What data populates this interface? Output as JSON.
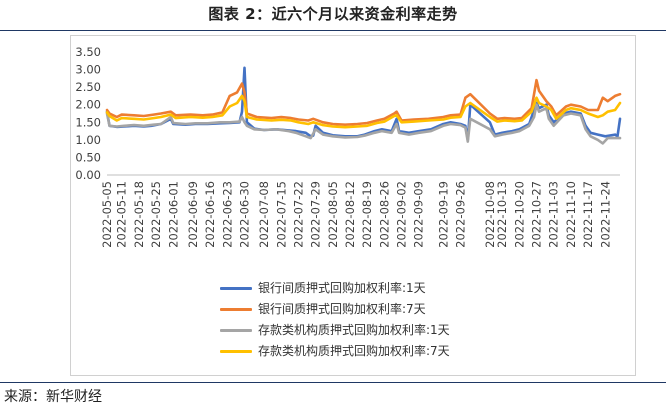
{
  "header": {
    "title": "图表 2：近六个月以来资金利率走势"
  },
  "footer": {
    "source": "来源：新华财经"
  },
  "chart_data": {
    "type": "line",
    "title": "",
    "xlabel": "",
    "ylabel": "",
    "ylim": [
      0,
      3.5
    ],
    "yticks": [
      "0.00",
      "0.50",
      "1.00",
      "1.50",
      "2.00",
      "2.50",
      "3.00",
      "3.50"
    ],
    "grid": false,
    "legend": "bottom",
    "x_start": "2022-05-05",
    "x_end": "2022-11-30",
    "xticks": [
      "2022-05-05",
      "2022-05-11",
      "2022-05-18",
      "2022-05-25",
      "2022-06-01",
      "2022-06-09",
      "2022-06-16",
      "2022-06-23",
      "2022-06-30",
      "2022-07-08",
      "2022-07-15",
      "2022-07-22",
      "2022-07-29",
      "2022-08-05",
      "2022-08-12",
      "2022-08-19",
      "2022-08-26",
      "2022-09-02",
      "2022-09-09",
      "2022-09-19",
      "2022-09-26",
      "2022-10-08",
      "2022-10-13",
      "2022-10-20",
      "2022-10-27",
      "2022-11-03",
      "2022-11-10",
      "2022-11-17",
      "2022-11-24"
    ],
    "series": [
      {
        "name": "银行间质押式回购加权利率:1天",
        "color": "#4472c4",
        "points": [
          [
            "2022-05-05",
            1.8
          ],
          [
            "2022-05-06",
            1.4
          ],
          [
            "2022-05-09",
            1.37
          ],
          [
            "2022-05-12",
            1.38
          ],
          [
            "2022-05-16",
            1.4
          ],
          [
            "2022-05-20",
            1.38
          ],
          [
            "2022-05-23",
            1.4
          ],
          [
            "2022-05-27",
            1.45
          ],
          [
            "2022-05-31",
            1.6
          ],
          [
            "2022-06-01",
            1.45
          ],
          [
            "2022-06-06",
            1.43
          ],
          [
            "2022-06-10",
            1.45
          ],
          [
            "2022-06-15",
            1.45
          ],
          [
            "2022-06-20",
            1.47
          ],
          [
            "2022-06-24",
            1.48
          ],
          [
            "2022-06-28",
            1.5
          ],
          [
            "2022-06-29",
            1.8
          ],
          [
            "2022-06-30",
            3.05
          ],
          [
            "2022-07-01",
            1.5
          ],
          [
            "2022-07-04",
            1.32
          ],
          [
            "2022-07-08",
            1.28
          ],
          [
            "2022-07-13",
            1.3
          ],
          [
            "2022-07-18",
            1.27
          ],
          [
            "2022-07-21",
            1.25
          ],
          [
            "2022-07-25",
            1.2
          ],
          [
            "2022-07-27",
            1.1
          ],
          [
            "2022-07-28",
            1.12
          ],
          [
            "2022-07-29",
            1.4
          ],
          [
            "2022-08-01",
            1.2
          ],
          [
            "2022-08-05",
            1.13
          ],
          [
            "2022-08-10",
            1.1
          ],
          [
            "2022-08-15",
            1.1
          ],
          [
            "2022-08-18",
            1.15
          ],
          [
            "2022-08-22",
            1.25
          ],
          [
            "2022-08-25",
            1.3
          ],
          [
            "2022-08-29",
            1.25
          ],
          [
            "2022-08-31",
            1.6
          ],
          [
            "2022-09-01",
            1.25
          ],
          [
            "2022-09-05",
            1.2
          ],
          [
            "2022-09-09",
            1.25
          ],
          [
            "2022-09-14",
            1.3
          ],
          [
            "2022-09-19",
            1.45
          ],
          [
            "2022-09-22",
            1.5
          ],
          [
            "2022-09-26",
            1.45
          ],
          [
            "2022-09-28",
            1.4
          ],
          [
            "2022-09-29",
            1.0
          ],
          [
            "2022-09-30",
            2.0
          ],
          [
            "2022-10-08",
            1.5
          ],
          [
            "2022-10-10",
            1.15
          ],
          [
            "2022-10-13",
            1.2
          ],
          [
            "2022-10-17",
            1.25
          ],
          [
            "2022-10-20",
            1.3
          ],
          [
            "2022-10-24",
            1.45
          ],
          [
            "2022-10-25",
            1.65
          ],
          [
            "2022-10-27",
            2.05
          ],
          [
            "2022-10-28",
            1.9
          ],
          [
            "2022-10-31",
            2.0
          ],
          [
            "2022-11-01",
            1.7
          ],
          [
            "2022-11-03",
            1.5
          ],
          [
            "2022-11-07",
            1.75
          ],
          [
            "2022-11-10",
            1.8
          ],
          [
            "2022-11-14",
            1.75
          ],
          [
            "2022-11-16",
            1.4
          ],
          [
            "2022-11-18",
            1.2
          ],
          [
            "2022-11-21",
            1.15
          ],
          [
            "2022-11-24",
            1.1
          ],
          [
            "2022-11-28",
            1.15
          ],
          [
            "2022-11-29",
            1.1
          ],
          [
            "2022-11-30",
            1.6
          ]
        ]
      },
      {
        "name": "银行间质押式回购加权利率:7天",
        "color": "#ed7d31",
        "points": [
          [
            "2022-05-05",
            1.85
          ],
          [
            "2022-05-06",
            1.75
          ],
          [
            "2022-05-09",
            1.65
          ],
          [
            "2022-05-11",
            1.72
          ],
          [
            "2022-05-16",
            1.7
          ],
          [
            "2022-05-20",
            1.68
          ],
          [
            "2022-05-24",
            1.72
          ],
          [
            "2022-05-27",
            1.75
          ],
          [
            "2022-05-31",
            1.8
          ],
          [
            "2022-06-02",
            1.7
          ],
          [
            "2022-06-08",
            1.72
          ],
          [
            "2022-06-13",
            1.7
          ],
          [
            "2022-06-17",
            1.72
          ],
          [
            "2022-06-21",
            1.78
          ],
          [
            "2022-06-24",
            2.25
          ],
          [
            "2022-06-27",
            2.35
          ],
          [
            "2022-06-29",
            2.6
          ],
          [
            "2022-06-30",
            2.35
          ],
          [
            "2022-07-01",
            1.75
          ],
          [
            "2022-07-05",
            1.65
          ],
          [
            "2022-07-11",
            1.62
          ],
          [
            "2022-07-15",
            1.65
          ],
          [
            "2022-07-19",
            1.62
          ],
          [
            "2022-07-22",
            1.58
          ],
          [
            "2022-07-26",
            1.55
          ],
          [
            "2022-07-28",
            1.6
          ],
          [
            "2022-08-01",
            1.5
          ],
          [
            "2022-08-05",
            1.45
          ],
          [
            "2022-08-10",
            1.43
          ],
          [
            "2022-08-15",
            1.45
          ],
          [
            "2022-08-19",
            1.48
          ],
          [
            "2022-08-23",
            1.55
          ],
          [
            "2022-08-26",
            1.6
          ],
          [
            "2022-08-30",
            1.75
          ],
          [
            "2022-08-31",
            1.8
          ],
          [
            "2022-09-02",
            1.55
          ],
          [
            "2022-09-07",
            1.58
          ],
          [
            "2022-09-13",
            1.6
          ],
          [
            "2022-09-19",
            1.65
          ],
          [
            "2022-09-22",
            1.7
          ],
          [
            "2022-09-26",
            1.72
          ],
          [
            "2022-09-28",
            2.2
          ],
          [
            "2022-09-30",
            2.3
          ],
          [
            "2022-10-08",
            1.75
          ],
          [
            "2022-10-11",
            1.6
          ],
          [
            "2022-10-14",
            1.62
          ],
          [
            "2022-10-18",
            1.6
          ],
          [
            "2022-10-21",
            1.62
          ],
          [
            "2022-10-25",
            1.9
          ],
          [
            "2022-10-27",
            2.7
          ],
          [
            "2022-10-28",
            2.4
          ],
          [
            "2022-10-31",
            2.1
          ],
          [
            "2022-11-02",
            1.95
          ],
          [
            "2022-11-04",
            1.7
          ],
          [
            "2022-11-08",
            1.95
          ],
          [
            "2022-11-10",
            2.0
          ],
          [
            "2022-11-14",
            1.95
          ],
          [
            "2022-11-17",
            1.85
          ],
          [
            "2022-11-21",
            1.85
          ],
          [
            "2022-11-23",
            2.2
          ],
          [
            "2022-11-25",
            2.1
          ],
          [
            "2022-11-28",
            2.25
          ],
          [
            "2022-11-30",
            2.3
          ]
        ]
      },
      {
        "name": "存款类机构质押式回购加权利率:1天",
        "color": "#a5a5a5",
        "points": [
          [
            "2022-05-05",
            1.75
          ],
          [
            "2022-05-06",
            1.4
          ],
          [
            "2022-05-09",
            1.38
          ],
          [
            "2022-05-12",
            1.4
          ],
          [
            "2022-05-16",
            1.42
          ],
          [
            "2022-05-20",
            1.4
          ],
          [
            "2022-05-24",
            1.43
          ],
          [
            "2022-05-27",
            1.45
          ],
          [
            "2022-05-31",
            1.65
          ],
          [
            "2022-06-01",
            1.48
          ],
          [
            "2022-06-06",
            1.45
          ],
          [
            "2022-06-10",
            1.47
          ],
          [
            "2022-06-15",
            1.47
          ],
          [
            "2022-06-20",
            1.5
          ],
          [
            "2022-06-24",
            1.5
          ],
          [
            "2022-06-28",
            1.52
          ],
          [
            "2022-06-29",
            1.65
          ],
          [
            "2022-06-30",
            1.5
          ],
          [
            "2022-07-01",
            1.4
          ],
          [
            "2022-07-04",
            1.3
          ],
          [
            "2022-07-08",
            1.28
          ],
          [
            "2022-07-13",
            1.3
          ],
          [
            "2022-07-18",
            1.25
          ],
          [
            "2022-07-21",
            1.2
          ],
          [
            "2022-07-25",
            1.1
          ],
          [
            "2022-07-27",
            1.05
          ],
          [
            "2022-07-29",
            1.3
          ],
          [
            "2022-08-01",
            1.15
          ],
          [
            "2022-08-05",
            1.1
          ],
          [
            "2022-08-10",
            1.07
          ],
          [
            "2022-08-15",
            1.08
          ],
          [
            "2022-08-18",
            1.12
          ],
          [
            "2022-08-22",
            1.2
          ],
          [
            "2022-08-25",
            1.25
          ],
          [
            "2022-08-29",
            1.2
          ],
          [
            "2022-08-31",
            1.45
          ],
          [
            "2022-09-01",
            1.2
          ],
          [
            "2022-09-05",
            1.15
          ],
          [
            "2022-09-09",
            1.2
          ],
          [
            "2022-09-14",
            1.25
          ],
          [
            "2022-09-19",
            1.4
          ],
          [
            "2022-09-22",
            1.45
          ],
          [
            "2022-09-26",
            1.42
          ],
          [
            "2022-09-28",
            1.35
          ],
          [
            "2022-09-29",
            0.95
          ],
          [
            "2022-09-30",
            1.6
          ],
          [
            "2022-10-08",
            1.3
          ],
          [
            "2022-10-10",
            1.1
          ],
          [
            "2022-10-13",
            1.15
          ],
          [
            "2022-10-17",
            1.2
          ],
          [
            "2022-10-20",
            1.25
          ],
          [
            "2022-10-24",
            1.4
          ],
          [
            "2022-10-26",
            1.65
          ],
          [
            "2022-10-27",
            2.0
          ],
          [
            "2022-10-28",
            1.8
          ],
          [
            "2022-10-31",
            1.9
          ],
          [
            "2022-11-01",
            1.6
          ],
          [
            "2022-11-03",
            1.4
          ],
          [
            "2022-11-07",
            1.7
          ],
          [
            "2022-11-10",
            1.75
          ],
          [
            "2022-11-14",
            1.7
          ],
          [
            "2022-11-16",
            1.3
          ],
          [
            "2022-11-18",
            1.1
          ],
          [
            "2022-11-21",
            1.0
          ],
          [
            "2022-11-23",
            0.9
          ],
          [
            "2022-11-25",
            1.05
          ],
          [
            "2022-11-28",
            1.05
          ],
          [
            "2022-11-30",
            1.05
          ]
        ]
      },
      {
        "name": "存款类机构质押式回购加权利率:7天",
        "color": "#ffc000",
        "points": [
          [
            "2022-05-05",
            1.78
          ],
          [
            "2022-05-06",
            1.68
          ],
          [
            "2022-05-09",
            1.55
          ],
          [
            "2022-05-11",
            1.62
          ],
          [
            "2022-05-16",
            1.6
          ],
          [
            "2022-05-20",
            1.58
          ],
          [
            "2022-05-24",
            1.62
          ],
          [
            "2022-05-27",
            1.65
          ],
          [
            "2022-05-31",
            1.72
          ],
          [
            "2022-06-02",
            1.62
          ],
          [
            "2022-06-08",
            1.65
          ],
          [
            "2022-06-13",
            1.63
          ],
          [
            "2022-06-17",
            1.65
          ],
          [
            "2022-06-21",
            1.7
          ],
          [
            "2022-06-24",
            1.95
          ],
          [
            "2022-06-27",
            2.05
          ],
          [
            "2022-06-29",
            2.25
          ],
          [
            "2022-06-30",
            2.1
          ],
          [
            "2022-07-01",
            1.65
          ],
          [
            "2022-07-05",
            1.58
          ],
          [
            "2022-07-11",
            1.55
          ],
          [
            "2022-07-15",
            1.57
          ],
          [
            "2022-07-19",
            1.55
          ],
          [
            "2022-07-22",
            1.5
          ],
          [
            "2022-07-26",
            1.45
          ],
          [
            "2022-07-28",
            1.5
          ],
          [
            "2022-08-01",
            1.42
          ],
          [
            "2022-08-05",
            1.38
          ],
          [
            "2022-08-10",
            1.36
          ],
          [
            "2022-08-15",
            1.38
          ],
          [
            "2022-08-19",
            1.4
          ],
          [
            "2022-08-23",
            1.48
          ],
          [
            "2022-08-26",
            1.52
          ],
          [
            "2022-08-30",
            1.68
          ],
          [
            "2022-08-31",
            1.7
          ],
          [
            "2022-09-02",
            1.5
          ],
          [
            "2022-09-07",
            1.52
          ],
          [
            "2022-09-13",
            1.55
          ],
          [
            "2022-09-19",
            1.58
          ],
          [
            "2022-09-22",
            1.63
          ],
          [
            "2022-09-26",
            1.65
          ],
          [
            "2022-09-28",
            1.95
          ],
          [
            "2022-09-30",
            2.05
          ],
          [
            "2022-10-08",
            1.65
          ],
          [
            "2022-10-11",
            1.52
          ],
          [
            "2022-10-14",
            1.55
          ],
          [
            "2022-10-18",
            1.53
          ],
          [
            "2022-10-21",
            1.55
          ],
          [
            "2022-10-25",
            1.8
          ],
          [
            "2022-10-27",
            2.2
          ],
          [
            "2022-10-28",
            2.05
          ],
          [
            "2022-10-31",
            1.95
          ],
          [
            "2022-11-02",
            1.85
          ],
          [
            "2022-11-04",
            1.6
          ],
          [
            "2022-11-08",
            1.85
          ],
          [
            "2022-11-10",
            1.9
          ],
          [
            "2022-11-14",
            1.85
          ],
          [
            "2022-11-17",
            1.75
          ],
          [
            "2022-11-21",
            1.65
          ],
          [
            "2022-11-23",
            1.7
          ],
          [
            "2022-11-25",
            1.8
          ],
          [
            "2022-11-28",
            1.85
          ],
          [
            "2022-11-30",
            2.05
          ]
        ]
      }
    ]
  }
}
